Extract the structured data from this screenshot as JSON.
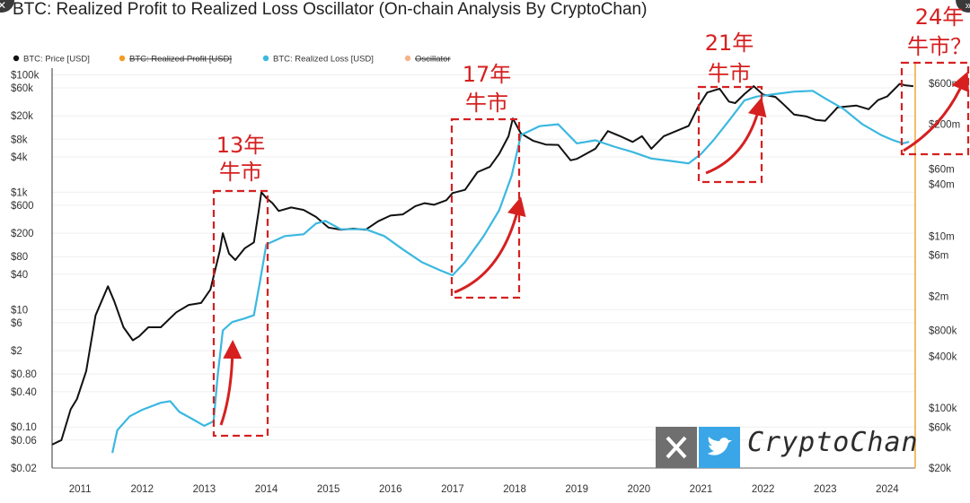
{
  "title": "BTC: Realized Profit to Realized Loss Oscillator (On-chain Analysis By CryptoChan)",
  "legend": [
    {
      "label": "BTC: Price [USD]",
      "color": "#111111",
      "struck": false
    },
    {
      "label": "BTC: Realized Profit [USD]",
      "color": "#f59a23",
      "struck": true
    },
    {
      "label": "BTC: Realized Loss [USD]",
      "color": "#3bb8e0",
      "struck": false
    },
    {
      "label": "Oscillator",
      "color": "#f4b38a",
      "struck": true
    }
  ],
  "watermark": {
    "text": "CryptoChan",
    "x_icon": "x-logo-icon",
    "bird_icon": "twitter-bird-icon"
  },
  "chart_data": {
    "type": "line",
    "x_axis": {
      "ticks": [
        "2011",
        "2012",
        "2013",
        "2014",
        "2015",
        "2016",
        "2017",
        "2018",
        "2019",
        "2020",
        "2021",
        "2022",
        "2023",
        "2024"
      ],
      "range": [
        2010.55,
        2024.45
      ]
    },
    "y_left": {
      "scale": "log",
      "range": [
        0.02,
        130000
      ],
      "ticks": [
        {
          "label": "$100k",
          "v": 100000
        },
        {
          "label": "$60k",
          "v": 60000
        },
        {
          "label": "$20k",
          "v": 20000
        },
        {
          "label": "$8k",
          "v": 8000
        },
        {
          "label": "$4k",
          "v": 4000
        },
        {
          "label": "$1k",
          "v": 1000
        },
        {
          "label": "$600",
          "v": 600
        },
        {
          "label": "$200",
          "v": 200
        },
        {
          "label": "$80",
          "v": 80
        },
        {
          "label": "$40",
          "v": 40
        },
        {
          "label": "$10",
          "v": 10
        },
        {
          "label": "$6",
          "v": 6
        },
        {
          "label": "$2",
          "v": 2
        },
        {
          "label": "$0.80",
          "v": 0.8
        },
        {
          "label": "$0.40",
          "v": 0.4
        },
        {
          "label": "$0.10",
          "v": 0.1
        },
        {
          "label": "$0.06",
          "v": 0.06
        },
        {
          "label": "$0.02",
          "v": 0.02
        }
      ]
    },
    "y_right": {
      "scale": "log",
      "range": [
        20000,
        900000000
      ],
      "ticks": [
        {
          "label": "$600m",
          "v": 600000000
        },
        {
          "label": "$200m",
          "v": 200000000
        },
        {
          "label": "$60m",
          "v": 60000000
        },
        {
          "label": "$40m",
          "v": 40000000
        },
        {
          "label": "$10m",
          "v": 10000000
        },
        {
          "label": "$6m",
          "v": 6000000
        },
        {
          "label": "$2m",
          "v": 2000000
        },
        {
          "label": "$800k",
          "v": 800000
        },
        {
          "label": "$400k",
          "v": 400000
        },
        {
          "label": "$100k",
          "v": 100000
        },
        {
          "label": "$60k",
          "v": 60000
        },
        {
          "label": "$20k",
          "v": 20000
        }
      ]
    },
    "series": [
      {
        "name": "BTC: Price [USD]",
        "axis": "left",
        "color": "#111111",
        "points": [
          [
            2010.55,
            0.05
          ],
          [
            2010.7,
            0.06
          ],
          [
            2010.85,
            0.2
          ],
          [
            2010.95,
            0.3
          ],
          [
            2011.1,
            0.9
          ],
          [
            2011.25,
            8
          ],
          [
            2011.45,
            25
          ],
          [
            2011.55,
            14
          ],
          [
            2011.7,
            5
          ],
          [
            2011.85,
            3
          ],
          [
            2011.95,
            3.5
          ],
          [
            2012.1,
            5
          ],
          [
            2012.3,
            5
          ],
          [
            2012.55,
            9
          ],
          [
            2012.75,
            12
          ],
          [
            2012.95,
            13
          ],
          [
            2013.1,
            22
          ],
          [
            2013.25,
            100
          ],
          [
            2013.3,
            200
          ],
          [
            2013.4,
            90
          ],
          [
            2013.5,
            70
          ],
          [
            2013.65,
            110
          ],
          [
            2013.8,
            140
          ],
          [
            2013.88,
            500
          ],
          [
            2013.92,
            1000
          ],
          [
            2014.0,
            800
          ],
          [
            2014.1,
            650
          ],
          [
            2014.2,
            480
          ],
          [
            2014.4,
            550
          ],
          [
            2014.6,
            500
          ],
          [
            2014.8,
            380
          ],
          [
            2015.0,
            250
          ],
          [
            2015.2,
            230
          ],
          [
            2015.4,
            240
          ],
          [
            2015.6,
            230
          ],
          [
            2015.8,
            320
          ],
          [
            2016.0,
            400
          ],
          [
            2016.2,
            420
          ],
          [
            2016.4,
            580
          ],
          [
            2016.55,
            650
          ],
          [
            2016.7,
            610
          ],
          [
            2016.9,
            730
          ],
          [
            2017.0,
            970
          ],
          [
            2017.2,
            1100
          ],
          [
            2017.4,
            2200
          ],
          [
            2017.6,
            2700
          ],
          [
            2017.75,
            4500
          ],
          [
            2017.9,
            9000
          ],
          [
            2017.97,
            18000
          ],
          [
            2018.1,
            10000
          ],
          [
            2018.3,
            7500
          ],
          [
            2018.5,
            6500
          ],
          [
            2018.7,
            6400
          ],
          [
            2018.9,
            3500
          ],
          [
            2019.0,
            3700
          ],
          [
            2019.3,
            5500
          ],
          [
            2019.5,
            11000
          ],
          [
            2019.7,
            9000
          ],
          [
            2019.9,
            7200
          ],
          [
            2020.05,
            9000
          ],
          [
            2020.2,
            5500
          ],
          [
            2020.4,
            9000
          ],
          [
            2020.6,
            11000
          ],
          [
            2020.8,
            13500
          ],
          [
            2020.95,
            28000
          ],
          [
            2021.1,
            50000
          ],
          [
            2021.3,
            58000
          ],
          [
            2021.45,
            35000
          ],
          [
            2021.55,
            33000
          ],
          [
            2021.7,
            47000
          ],
          [
            2021.85,
            64000
          ],
          [
            2022.0,
            46000
          ],
          [
            2022.2,
            42000
          ],
          [
            2022.35,
            30000
          ],
          [
            2022.5,
            21000
          ],
          [
            2022.7,
            19500
          ],
          [
            2022.85,
            17000
          ],
          [
            2023.0,
            16500
          ],
          [
            2023.2,
            28000
          ],
          [
            2023.5,
            30000
          ],
          [
            2023.7,
            26000
          ],
          [
            2023.85,
            37000
          ],
          [
            2024.0,
            43000
          ],
          [
            2024.2,
            70000
          ],
          [
            2024.3,
            66000
          ],
          [
            2024.42,
            64000
          ]
        ]
      },
      {
        "name": "BTC: Realized Loss [USD]",
        "axis": "right",
        "color": "#3bb8e0",
        "points": [
          [
            2011.52,
            30000
          ],
          [
            2011.6,
            55000
          ],
          [
            2011.8,
            80000
          ],
          [
            2012.0,
            95000
          ],
          [
            2012.3,
            115000
          ],
          [
            2012.45,
            120000
          ],
          [
            2012.6,
            90000
          ],
          [
            2012.8,
            75000
          ],
          [
            2013.0,
            62000
          ],
          [
            2013.15,
            70000
          ],
          [
            2013.22,
            250000
          ],
          [
            2013.3,
            800000
          ],
          [
            2013.45,
            1000000
          ],
          [
            2013.65,
            1100000
          ],
          [
            2013.8,
            1200000
          ],
          [
            2013.9,
            3000000
          ],
          [
            2014.0,
            8000000
          ],
          [
            2014.3,
            10000000
          ],
          [
            2014.6,
            10500000
          ],
          [
            2014.8,
            14000000
          ],
          [
            2014.95,
            15000000
          ],
          [
            2015.2,
            12000000
          ],
          [
            2015.6,
            12000000
          ],
          [
            2015.9,
            10000000
          ],
          [
            2016.2,
            7000000
          ],
          [
            2016.5,
            5000000
          ],
          [
            2016.8,
            4000000
          ],
          [
            2017.0,
            3500000
          ],
          [
            2017.2,
            5000000
          ],
          [
            2017.5,
            10000000
          ],
          [
            2017.75,
            20000000
          ],
          [
            2017.95,
            50000000
          ],
          [
            2018.1,
            150000000
          ],
          [
            2018.4,
            190000000
          ],
          [
            2018.7,
            200000000
          ],
          [
            2019.0,
            120000000
          ],
          [
            2019.3,
            130000000
          ],
          [
            2019.6,
            110000000
          ],
          [
            2019.9,
            95000000
          ],
          [
            2020.2,
            80000000
          ],
          [
            2020.5,
            75000000
          ],
          [
            2020.8,
            70000000
          ],
          [
            2021.0,
            90000000
          ],
          [
            2021.2,
            130000000
          ],
          [
            2021.45,
            220000000
          ],
          [
            2021.7,
            380000000
          ],
          [
            2021.9,
            420000000
          ],
          [
            2022.2,
            450000000
          ],
          [
            2022.5,
            480000000
          ],
          [
            2022.8,
            490000000
          ],
          [
            2023.0,
            400000000
          ],
          [
            2023.3,
            300000000
          ],
          [
            2023.6,
            200000000
          ],
          [
            2023.9,
            150000000
          ],
          [
            2024.1,
            130000000
          ],
          [
            2024.25,
            120000000
          ],
          [
            2024.35,
            125000000
          ]
        ]
      }
    ],
    "annotations": [
      {
        "line1": "13年",
        "line2": "牛市"
      },
      {
        "line1": "17年",
        "line2": "牛市"
      },
      {
        "line1": "21年",
        "line2": "牛市"
      },
      {
        "line1": "24年",
        "line2": "牛市？"
      }
    ]
  }
}
